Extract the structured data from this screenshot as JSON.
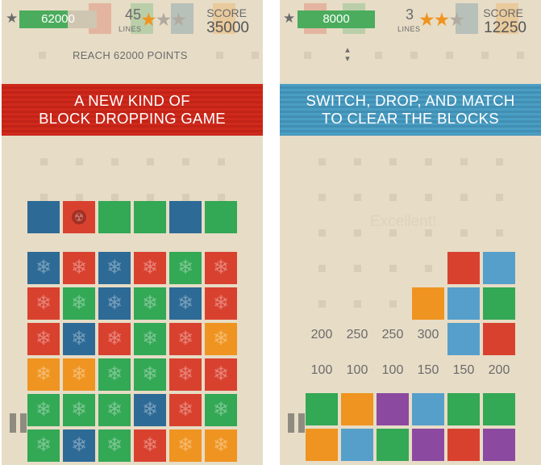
{
  "colors": {
    "red": "#d9412f",
    "green": "#33a855",
    "blue": "#2d6a96",
    "orange": "#ef9420",
    "purple": "#8b4aa0",
    "lightblue": "#569fcb",
    "star_gold": "#ef9420",
    "star_gray": "#b1aaa0"
  },
  "screen1": {
    "progress_value": "62000",
    "progress_fraction": 0.62,
    "lines_value": "45",
    "lines_label": "LINES",
    "stars_earned": 1,
    "stars_total": 3,
    "score_label": "SCORE",
    "score_value": "35000",
    "goal_text": "REACH 62000 POINTS",
    "banner_line1": "A NEW KIND OF",
    "banner_line2": "BLOCK DROPPING GAME",
    "icon": "radiation-icon",
    "preview_row": [
      "blue",
      "red-radiation",
      "green",
      "green",
      "blue",
      "green"
    ],
    "board": [
      [
        "blue",
        "red",
        "blue",
        "red",
        "green",
        "red"
      ],
      [
        "red",
        "green",
        "blue",
        "green",
        "blue",
        "red"
      ],
      [
        "red",
        "blue",
        "red",
        "green",
        "red",
        "orange"
      ],
      [
        "orange",
        "orange",
        "green",
        "green",
        "red",
        "red"
      ],
      [
        "green",
        "green",
        "green",
        "blue",
        "red",
        "green"
      ],
      [
        "green",
        "blue",
        "green",
        "red",
        "orange",
        "orange"
      ]
    ]
  },
  "screen2": {
    "progress_value": "8000",
    "progress_fraction": 1.0,
    "lines_value": "3",
    "lines_label": "LINES",
    "stars_earned": 2,
    "stars_total": 3,
    "score_label": "SCORE",
    "score_value": "12250",
    "banner_line1": "SWITCH, DROP, AND MATCH",
    "banner_line2": "TO CLEAR THE BLOCKS",
    "feedback_text": "Excellent!",
    "floating_blocks": [
      {
        "col": 4,
        "row": 0,
        "color": "red"
      },
      {
        "col": 5,
        "row": 0,
        "color": "lightblue"
      },
      {
        "col": 3,
        "row": 1,
        "color": "orange"
      },
      {
        "col": 4,
        "row": 1,
        "color": "lightblue"
      },
      {
        "col": 5,
        "row": 1,
        "color": "green"
      },
      {
        "col": 4,
        "row": 2,
        "color": "lightblue"
      },
      {
        "col": 5,
        "row": 2,
        "color": "red"
      }
    ],
    "upper_values": [
      "200",
      "250",
      "250",
      "300"
    ],
    "lower_values": [
      "100",
      "100",
      "100",
      "150",
      "150",
      "200"
    ],
    "bottom_rows": [
      [
        "green",
        "orange",
        "purple",
        "lightblue",
        "green",
        "green"
      ],
      [
        "orange",
        "lightblue",
        "green",
        "purple",
        "red",
        "purple"
      ]
    ]
  }
}
